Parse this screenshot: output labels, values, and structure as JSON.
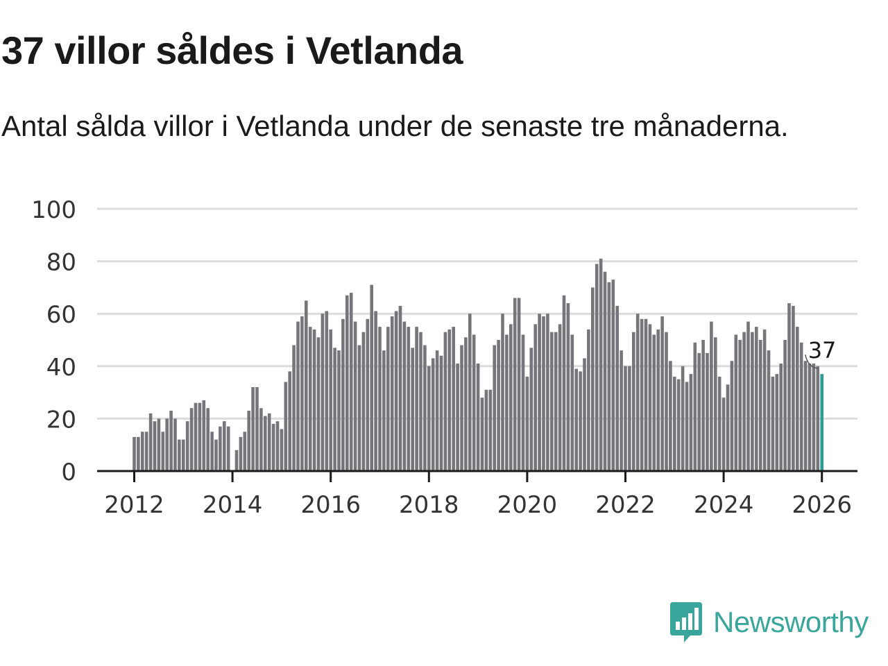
{
  "title": "37 villor såldes i Vetlanda",
  "subtitle": "Antal sålda villor i Vetlanda under de senaste tre månaderna.",
  "brand": {
    "name": "Newsworthy",
    "icon": "newsworthy-logo-icon",
    "color": "#3aa69b"
  },
  "chart_data": {
    "type": "bar",
    "title": "37 villor såldes i Vetlanda",
    "xlabel": "",
    "ylabel": "",
    "ylim": [
      0,
      100
    ],
    "yticks": [
      0,
      20,
      40,
      60,
      80,
      100
    ],
    "xticks": [
      "2012",
      "2014",
      "2016",
      "2018",
      "2020",
      "2022",
      "2024",
      "2026"
    ],
    "x_start": "2012-01",
    "grid": true,
    "bar_color": "#76757a",
    "highlight_color": "#2a9d97",
    "highlight_label": "37",
    "values": [
      13,
      13,
      15,
      15,
      22,
      19,
      20,
      15,
      20,
      23,
      20,
      12,
      12,
      19,
      24,
      26,
      26,
      27,
      24,
      15,
      12,
      17,
      19,
      17,
      null,
      8,
      13,
      15,
      23,
      32,
      32,
      24,
      21,
      22,
      18,
      19,
      16,
      34,
      38,
      48,
      57,
      59,
      65,
      55,
      54,
      51,
      60,
      61,
      54,
      47,
      46,
      58,
      67,
      68,
      57,
      48,
      53,
      58,
      71,
      61,
      55,
      46,
      55,
      59,
      61,
      63,
      57,
      55,
      47,
      55,
      53,
      48,
      40,
      43,
      46,
      44,
      53,
      54,
      55,
      41,
      48,
      51,
      60,
      52,
      41,
      28,
      31,
      31,
      48,
      50,
      60,
      52,
      56,
      66,
      66,
      52,
      36,
      47,
      56,
      60,
      59,
      60,
      53,
      53,
      56,
      67,
      64,
      52,
      39,
      38,
      43,
      54,
      70,
      79,
      81,
      76,
      72,
      73,
      63,
      46,
      40,
      40,
      53,
      60,
      58,
      58,
      56,
      52,
      54,
      59,
      53,
      42,
      36,
      35,
      40,
      34,
      37,
      49,
      45,
      50,
      45,
      57,
      51,
      36,
      28,
      33,
      42,
      52,
      50,
      53,
      57,
      53,
      55,
      50,
      54,
      46,
      36,
      37,
      41,
      50,
      64,
      63,
      55,
      49,
      42,
      41,
      41,
      40,
      37
    ]
  }
}
